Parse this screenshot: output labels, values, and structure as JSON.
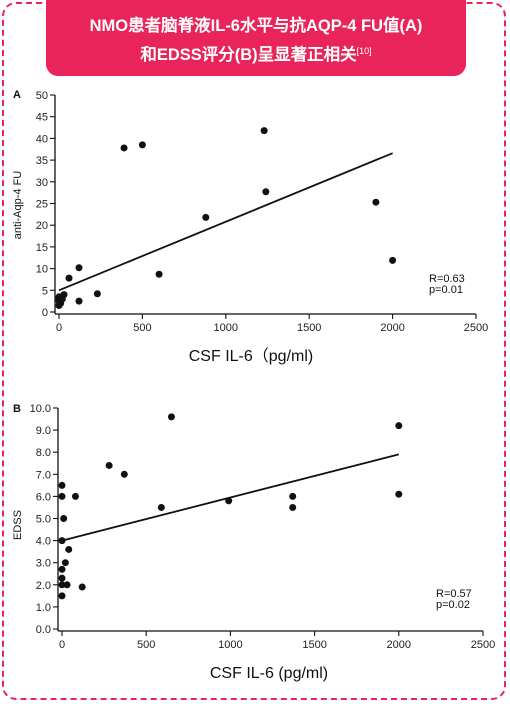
{
  "header": {
    "line1": "NMO患者脑脊液IL-6水平与抗AQP-4 FU值(A)",
    "line2": "和EDSS评分(B)呈显著正相关",
    "ref": "[10]"
  },
  "chart_data": [
    {
      "type": "scatter",
      "panel_label": "A",
      "title": "",
      "xlabel": "CSF IL-6（pg/ml)",
      "ylabel": "anti-Aqp-4 FU",
      "xlim": [
        0,
        2500
      ],
      "ylim": [
        0,
        50
      ],
      "xticks": [
        0,
        500,
        1000,
        1500,
        2000,
        2500
      ],
      "yticks": [
        0,
        5,
        10,
        15,
        20,
        25,
        30,
        35,
        40,
        45,
        50
      ],
      "ytick_labels": [
        "0",
        "5",
        "10",
        "15",
        "20",
        "25",
        "30",
        "35",
        "40",
        "45",
        "50"
      ],
      "points": [
        [
          0,
          1.5
        ],
        [
          0,
          2.5
        ],
        [
          0,
          3.0
        ],
        [
          0,
          3.5
        ],
        [
          10,
          2.0
        ],
        [
          15,
          3.5
        ],
        [
          20,
          3.0
        ],
        [
          30,
          4.0
        ],
        [
          60,
          7.8
        ],
        [
          120,
          10.2
        ],
        [
          120,
          2.5
        ],
        [
          230,
          4.2
        ],
        [
          390,
          37.8
        ],
        [
          500,
          38.5
        ],
        [
          600,
          8.7
        ],
        [
          880,
          21.8
        ],
        [
          1230,
          41.8
        ],
        [
          1240,
          27.7
        ],
        [
          1900,
          25.3
        ],
        [
          2000,
          11.9
        ]
      ],
      "trendline": {
        "x": [
          0,
          2000
        ],
        "y": [
          5.0,
          36.6
        ]
      },
      "annotation": [
        "R=0.63",
        "p=0.01"
      ],
      "grid": false
    },
    {
      "type": "scatter",
      "panel_label": "B",
      "title": "",
      "xlabel": "CSF IL-6  (pg/ml)",
      "ylabel": "EDSS",
      "xlim": [
        0,
        2500
      ],
      "ylim": [
        0,
        10
      ],
      "xticks": [
        0,
        500,
        1000,
        1500,
        2000,
        2500
      ],
      "yticks": [
        0,
        1,
        2,
        3,
        4,
        5,
        6,
        7,
        8,
        9,
        10
      ],
      "ytick_labels": [
        "0.0",
        "1.0",
        "2.0",
        "3.0",
        "4.0",
        "5.0",
        "6.0",
        "7.0",
        "8.0",
        "9.0",
        "10.0"
      ],
      "points": [
        [
          0,
          1.5
        ],
        [
          0,
          2.0
        ],
        [
          0,
          2.3
        ],
        [
          0,
          2.7
        ],
        [
          0,
          4.0
        ],
        [
          0,
          6.0
        ],
        [
          0,
          6.5
        ],
        [
          10,
          5.0
        ],
        [
          20,
          3.0
        ],
        [
          30,
          2.0
        ],
        [
          40,
          3.6
        ],
        [
          80,
          6.0
        ],
        [
          120,
          1.9
        ],
        [
          280,
          7.4
        ],
        [
          370,
          7.0
        ],
        [
          590,
          5.5
        ],
        [
          650,
          9.6
        ],
        [
          990,
          5.8
        ],
        [
          1370,
          5.5
        ],
        [
          1370,
          6.0
        ],
        [
          2000,
          9.2
        ],
        [
          2000,
          6.1
        ]
      ],
      "trendline": {
        "x": [
          0,
          2000
        ],
        "y": [
          4.0,
          7.9
        ]
      },
      "annotation": [
        "R=0.57",
        "p=0.02"
      ],
      "grid": false
    }
  ]
}
